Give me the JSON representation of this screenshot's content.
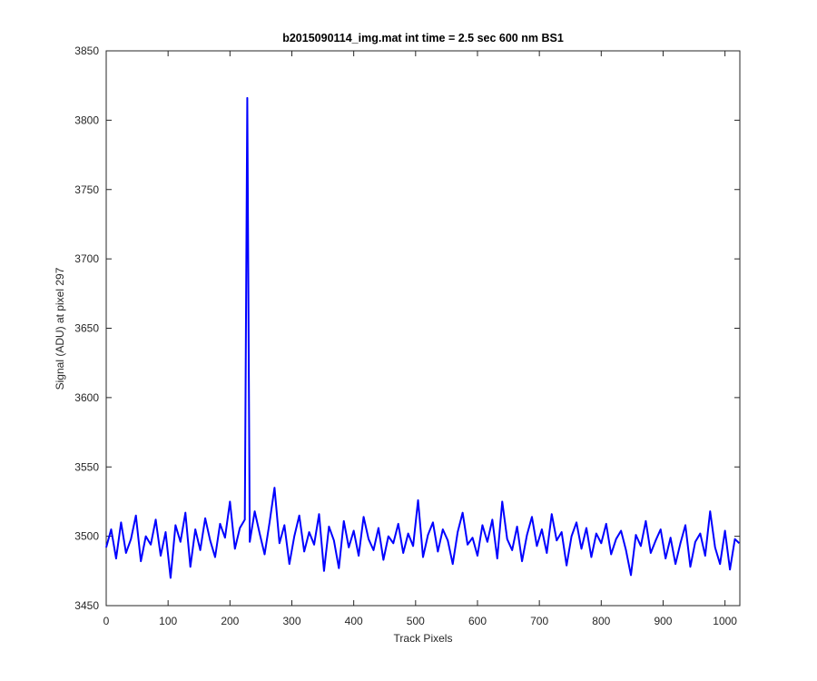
{
  "chart_data": {
    "type": "line",
    "title": "b2015090114_img.mat int time = 2.5 sec  600 nm BS1",
    "x_label": "Track Pixels",
    "y_label": "Signal (ADU) at pixel 297",
    "x": [
      0,
      8,
      16,
      24,
      32,
      40,
      48,
      56,
      64,
      72,
      80,
      88,
      96,
      104,
      112,
      120,
      128,
      136,
      144,
      152,
      160,
      168,
      176,
      184,
      192,
      200,
      208,
      216,
      224,
      228,
      232,
      240,
      248,
      256,
      264,
      272,
      280,
      288,
      296,
      304,
      312,
      320,
      328,
      336,
      344,
      352,
      360,
      368,
      376,
      384,
      392,
      400,
      408,
      416,
      424,
      432,
      440,
      448,
      456,
      464,
      472,
      480,
      488,
      496,
      504,
      512,
      520,
      528,
      536,
      544,
      552,
      560,
      568,
      576,
      584,
      592,
      600,
      608,
      616,
      624,
      632,
      640,
      648,
      656,
      664,
      672,
      680,
      688,
      696,
      704,
      712,
      720,
      728,
      736,
      744,
      752,
      760,
      768,
      776,
      784,
      792,
      800,
      808,
      816,
      824,
      832,
      840,
      848,
      856,
      864,
      872,
      880,
      888,
      896,
      904,
      912,
      920,
      928,
      936,
      944,
      952,
      960,
      968,
      976,
      984,
      992,
      1000,
      1008,
      1016,
      1023
    ],
    "series": [
      {
        "color": "#0000ff",
        "values": [
          3492,
          3505,
          3484,
          3510,
          3488,
          3498,
          3515,
          3482,
          3500,
          3494,
          3512,
          3486,
          3503,
          3470,
          3508,
          3496,
          3517,
          3478,
          3505,
          3490,
          3513,
          3497,
          3485,
          3509,
          3499,
          3525,
          3491,
          3506,
          3512,
          3816,
          3496,
          3518,
          3502,
          3487,
          3510,
          3535,
          3495,
          3508,
          3480,
          3500,
          3515,
          3489,
          3503,
          3494,
          3516,
          3475,
          3507,
          3497,
          3477,
          3511,
          3492,
          3504,
          3486,
          3514,
          3498,
          3490,
          3506,
          3483,
          3500,
          3495,
          3509,
          3488,
          3502,
          3493,
          3526,
          3485,
          3501,
          3510,
          3489,
          3505,
          3497,
          3480,
          3503,
          3517,
          3494,
          3499,
          3486,
          3508,
          3496,
          3512,
          3484,
          3525,
          3498,
          3490,
          3507,
          3482,
          3501,
          3514,
          3493,
          3505,
          3488,
          3516,
          3497,
          3503,
          3479,
          3500,
          3510,
          3491,
          3506,
          3485,
          3502,
          3495,
          3509,
          3487,
          3498,
          3504,
          3490,
          3472,
          3501,
          3493,
          3511,
          3488,
          3497,
          3505,
          3484,
          3499,
          3480,
          3495,
          3508,
          3478,
          3496,
          3502,
          3486,
          3518,
          3492,
          3480,
          3504,
          3476,
          3498,
          3495
        ]
      }
    ],
    "xlim": [
      0,
      1024
    ],
    "xticks": [
      0,
      100,
      200,
      300,
      400,
      500,
      600,
      700,
      800,
      900,
      1000
    ],
    "ylim": [
      3450,
      3850
    ],
    "yticks": [
      3450,
      3500,
      3550,
      3600,
      3650,
      3700,
      3750,
      3800,
      3850
    ],
    "grid": false
  }
}
